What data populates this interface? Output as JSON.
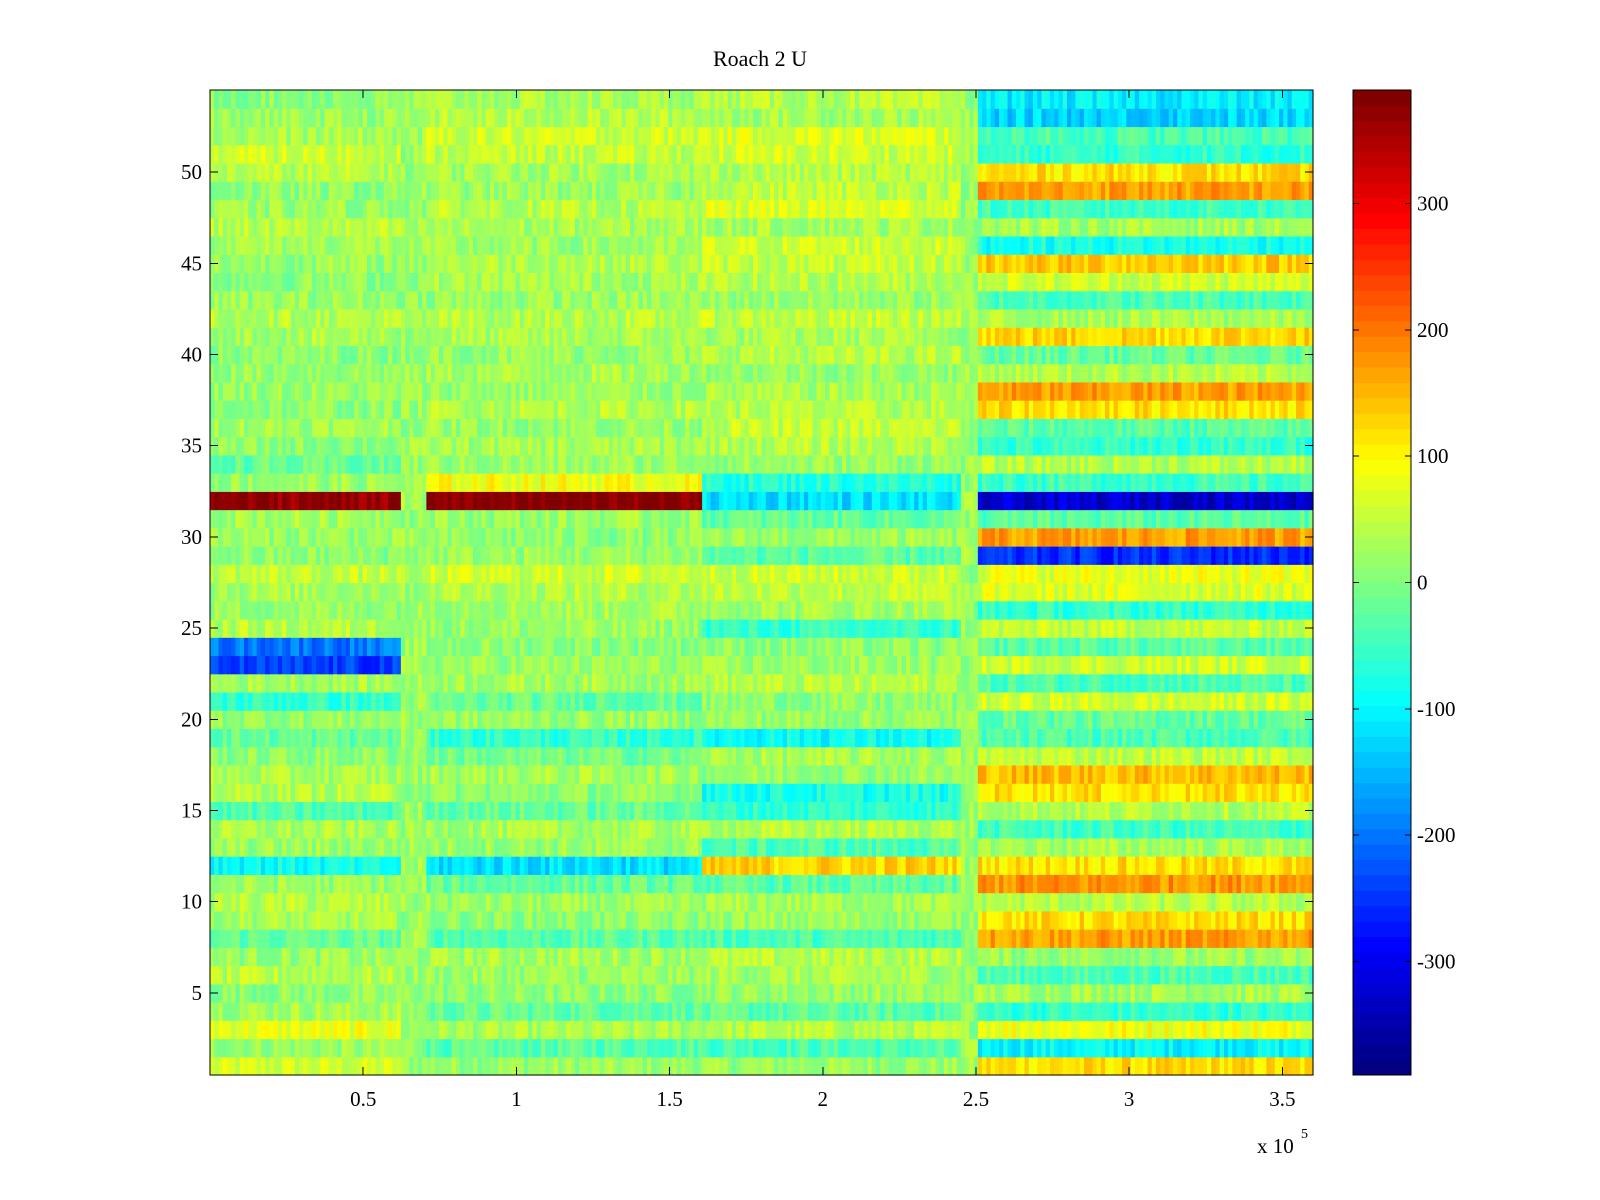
{
  "chart_data": {
    "type": "heatmap",
    "title": "Roach 2 U",
    "xlabel": "",
    "ylabel": "",
    "x_multiplier_label": "x 10",
    "x_multiplier_exponent": "5",
    "xlim": [
      0,
      3.6
    ],
    "ylim": [
      0.5,
      54.5
    ],
    "x_ticks": [
      0.5,
      1,
      1.5,
      2,
      2.5,
      3,
      3.5
    ],
    "x_tick_labels": [
      "0.5",
      "1",
      "1.5",
      "2",
      "2.5",
      "3",
      "3.5"
    ],
    "y_ticks": [
      5,
      10,
      15,
      20,
      25,
      30,
      35,
      40,
      45,
      50
    ],
    "y_tick_labels": [
      "5",
      "10",
      "15",
      "20",
      "25",
      "30",
      "35",
      "40",
      "45",
      "50"
    ],
    "rows": 54,
    "segment_breaks_x1e5": [
      0.62,
      0.7,
      1.6,
      2.45,
      2.5,
      3.6
    ],
    "color_range": [
      -390,
      390
    ],
    "colormap": "jet",
    "colorbar": {
      "ticks": [
        300,
        200,
        100,
        0,
        -100,
        -200,
        -300
      ],
      "tick_labels": [
        "300",
        "200",
        "100",
        "0",
        "-100",
        "-200",
        "-300"
      ]
    },
    "segments": [
      {
        "x_start": 0,
        "x_end": 0.62,
        "row_means": [
          60,
          20,
          80,
          30,
          10,
          40,
          20,
          -20,
          30,
          40,
          20,
          -90,
          20,
          30,
          -40,
          40,
          30,
          10,
          -20,
          20,
          -60,
          30,
          -250,
          -200,
          40,
          20,
          30,
          50,
          10,
          20,
          30,
          380,
          20,
          -20,
          10,
          30,
          10,
          20,
          20,
          10,
          30,
          40,
          20,
          10,
          20,
          30,
          40,
          20,
          10,
          40,
          60,
          30,
          20,
          10
        ]
      },
      {
        "x_start": 0.7,
        "x_end": 1.6,
        "row_means": [
          20,
          -30,
          30,
          -20,
          10,
          20,
          30,
          -30,
          10,
          20,
          -20,
          -120,
          20,
          30,
          -20,
          10,
          30,
          -10,
          -60,
          20,
          -20,
          30,
          20,
          10,
          20,
          30,
          40,
          60,
          20,
          10,
          20,
          390,
          90,
          20,
          30,
          20,
          40,
          20,
          30,
          20,
          30,
          40,
          20,
          30,
          40,
          20,
          30,
          40,
          20,
          30,
          50,
          60,
          40,
          30
        ]
      },
      {
        "x_start": 1.6,
        "x_end": 2.45,
        "row_means": [
          20,
          -40,
          40,
          -30,
          20,
          30,
          40,
          -40,
          20,
          30,
          -30,
          130,
          -40,
          40,
          -60,
          -80,
          20,
          30,
          -90,
          20,
          10,
          40,
          20,
          10,
          -60,
          30,
          50,
          60,
          -30,
          20,
          -20,
          -120,
          -70,
          20,
          40,
          50,
          40,
          30,
          20,
          40,
          30,
          50,
          20,
          40,
          50,
          60,
          30,
          70,
          50,
          40,
          60,
          70,
          30,
          40
        ]
      },
      {
        "x_start": 2.5,
        "x_end": 3.6,
        "row_means": [
          120,
          -100,
          90,
          -60,
          30,
          -40,
          20,
          170,
          120,
          40,
          180,
          120,
          30,
          -50,
          40,
          120,
          150,
          50,
          -40,
          -20,
          60,
          -40,
          60,
          -30,
          50,
          -60,
          70,
          80,
          -260,
          170,
          -30,
          -330,
          -50,
          40,
          -60,
          -30,
          120,
          170,
          40,
          -20,
          130,
          30,
          -40,
          60,
          140,
          -80,
          30,
          -50,
          170,
          120,
          -60,
          -40,
          -130,
          -110
        ]
      }
    ]
  }
}
